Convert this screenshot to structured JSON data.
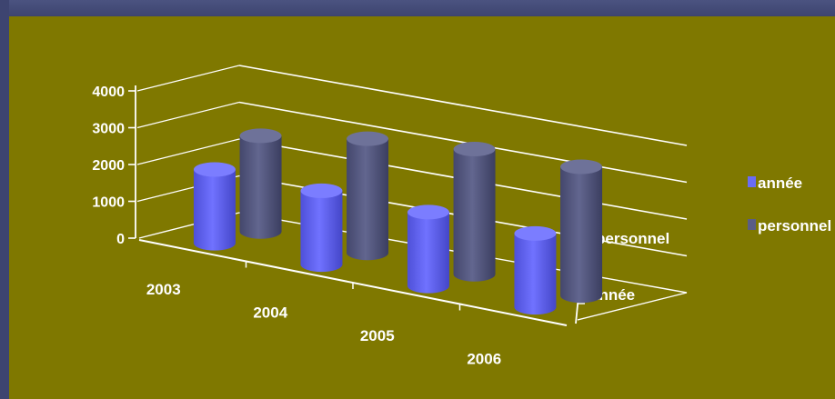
{
  "chart_data": {
    "type": "bar",
    "style": "3d-cylinder",
    "categories": [
      "2003",
      "2004",
      "2005",
      "2006"
    ],
    "series": [
      {
        "name": "année",
        "values": [
          2003,
          2004,
          2005,
          2006
        ],
        "color": "#6a6cf5"
      },
      {
        "name": "personnel",
        "values": [
          2600,
          3100,
          3400,
          3500
        ],
        "color": "#5a5d86"
      }
    ],
    "y_ticks": [
      "0",
      "1000",
      "2000",
      "3000",
      "4000"
    ],
    "ylim": [
      0,
      4000
    ],
    "depth_labels": [
      "année",
      "personnel"
    ],
    "legend": {
      "position": "right",
      "items": [
        "année",
        "personnel"
      ]
    },
    "gridlines": true,
    "background": "#7f7800"
  }
}
